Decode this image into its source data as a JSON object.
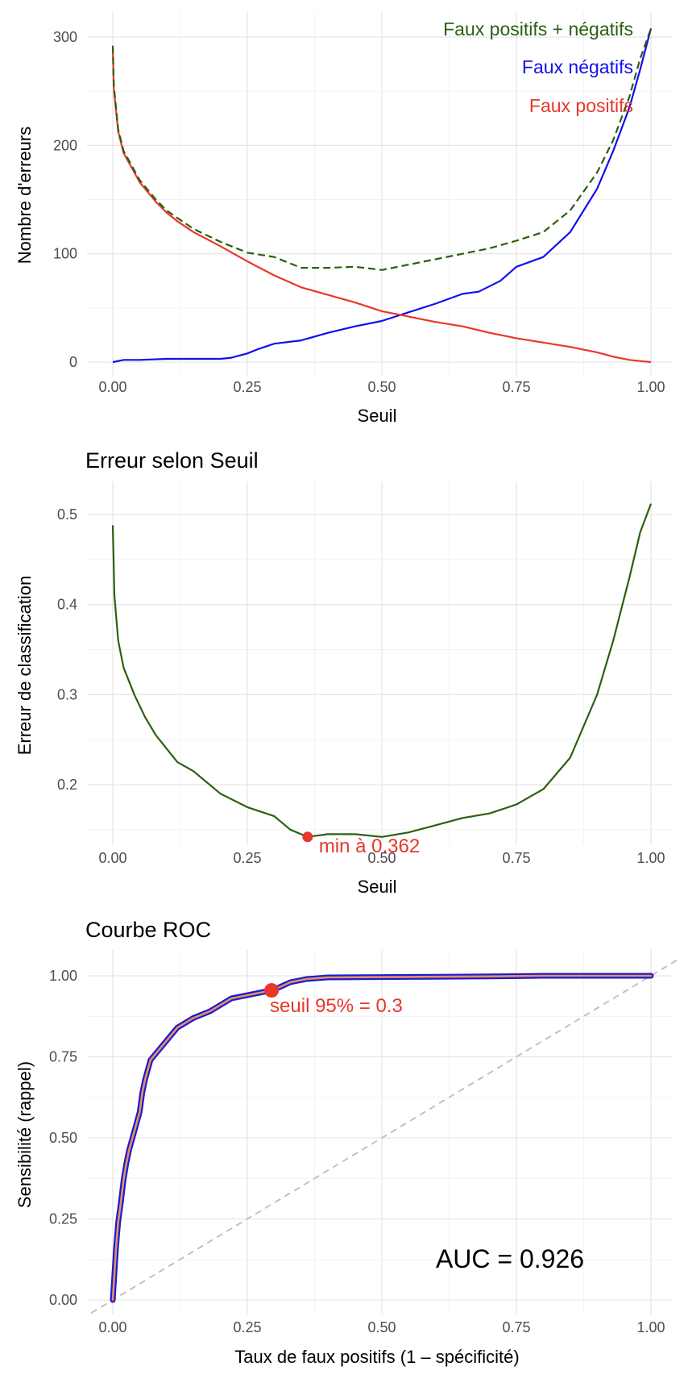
{
  "colors": {
    "fp": "#e8372a",
    "fn": "#1010ee",
    "total": "#2b6012",
    "error": "#2b6012",
    "min_point": "#e8372a",
    "roc_outer": "#1a1ad6",
    "roc_inner": "#e8905a",
    "diagonal": "#bdbdbd",
    "auc_text": "#000000"
  },
  "chart_data": [
    {
      "type": "line",
      "title": "",
      "xlabel": "Seuil",
      "ylabel": "Nombre d'erreurs",
      "xlim": [
        0,
        1
      ],
      "ylim": [
        0,
        305
      ],
      "x_ticks": [
        "0.00",
        "0.25",
        "0.50",
        "0.75",
        "1.00"
      ],
      "y_ticks": [
        "0",
        "100",
        "200",
        "300"
      ],
      "grid": true,
      "legend": "top-right (labels in plot)",
      "series": [
        {
          "name": "Faux positifs + négatifs",
          "key": "total",
          "style": "dashed",
          "x": [
            0.0,
            0.002,
            0.01,
            0.02,
            0.05,
            0.08,
            0.1,
            0.12,
            0.15,
            0.2,
            0.25,
            0.3,
            0.35,
            0.4,
            0.45,
            0.5,
            0.55,
            0.6,
            0.65,
            0.7,
            0.75,
            0.8,
            0.85,
            0.9,
            0.93,
            0.96,
            0.98,
            1.0
          ],
          "values": [
            292,
            255,
            215,
            195,
            168,
            150,
            140,
            133,
            123,
            111,
            101,
            97,
            87,
            87,
            88,
            85,
            90,
            95,
            100,
            105,
            112,
            120,
            140,
            175,
            205,
            245,
            280,
            308
          ]
        },
        {
          "name": "Faux négatifs",
          "key": "fn",
          "style": "solid",
          "x": [
            0.0,
            0.02,
            0.05,
            0.1,
            0.2,
            0.22,
            0.25,
            0.27,
            0.3,
            0.35,
            0.4,
            0.45,
            0.5,
            0.55,
            0.6,
            0.65,
            0.68,
            0.72,
            0.75,
            0.8,
            0.85,
            0.9,
            0.93,
            0.96,
            0.98,
            1.0
          ],
          "values": [
            0,
            2,
            2,
            3,
            3,
            4,
            8,
            12,
            17,
            20,
            27,
            33,
            38,
            46,
            54,
            63,
            65,
            75,
            88,
            97,
            120,
            160,
            195,
            235,
            270,
            308
          ]
        },
        {
          "name": "Faux positifs",
          "key": "fp",
          "style": "solid",
          "x": [
            0.0,
            0.002,
            0.01,
            0.02,
            0.05,
            0.08,
            0.1,
            0.12,
            0.15,
            0.2,
            0.25,
            0.3,
            0.35,
            0.4,
            0.45,
            0.5,
            0.55,
            0.6,
            0.65,
            0.7,
            0.75,
            0.8,
            0.85,
            0.9,
            0.93,
            0.96,
            0.98,
            1.0
          ],
          "values": [
            290,
            252,
            213,
            193,
            166,
            148,
            138,
            130,
            120,
            107,
            93,
            80,
            69,
            62,
            55,
            47,
            42,
            37,
            33,
            27,
            22,
            18,
            14,
            9,
            5,
            2,
            1,
            0
          ]
        }
      ]
    },
    {
      "type": "line",
      "title": "Erreur selon Seuil",
      "xlabel": "Seuil",
      "ylabel": "Erreur de classification",
      "xlim": [
        0,
        1
      ],
      "ylim": [
        0.125,
        0.53
      ],
      "x_ticks": [
        "0.00",
        "0.25",
        "0.50",
        "0.75",
        "1.00"
      ],
      "y_ticks": [
        "0.2",
        "0.3",
        "0.4",
        "0.5"
      ],
      "grid": true,
      "series": [
        {
          "key": "error",
          "x": [
            0.0,
            0.003,
            0.01,
            0.02,
            0.04,
            0.06,
            0.08,
            0.1,
            0.12,
            0.15,
            0.2,
            0.25,
            0.3,
            0.33,
            0.362,
            0.4,
            0.45,
            0.5,
            0.55,
            0.6,
            0.65,
            0.7,
            0.75,
            0.8,
            0.85,
            0.9,
            0.93,
            0.96,
            0.98,
            1.0
          ],
          "values": [
            0.488,
            0.41,
            0.36,
            0.33,
            0.3,
            0.275,
            0.255,
            0.24,
            0.225,
            0.215,
            0.19,
            0.175,
            0.165,
            0.15,
            0.142,
            0.145,
            0.145,
            0.142,
            0.147,
            0.155,
            0.163,
            0.168,
            0.178,
            0.195,
            0.23,
            0.3,
            0.36,
            0.43,
            0.48,
            0.512
          ]
        }
      ],
      "annotation": {
        "x": 0.362,
        "y": 0.142,
        "label": "min à 0.362"
      }
    },
    {
      "type": "line",
      "title": "Courbe ROC",
      "xlabel": "Taux de faux positifs (1 – spécificité)",
      "ylabel": "Sensibilité (rappel)",
      "xlim": [
        -0.05,
        1.05
      ],
      "ylim": [
        -0.05,
        1.05
      ],
      "x_ticks": [
        "0.00",
        "0.25",
        "0.50",
        "0.75",
        "1.00"
      ],
      "y_ticks": [
        "0.00",
        "0.25",
        "0.50",
        "0.75",
        "1.00"
      ],
      "grid": true,
      "series": [
        {
          "key": "roc",
          "x": [
            0.0,
            0.003,
            0.006,
            0.01,
            0.015,
            0.02,
            0.025,
            0.03,
            0.04,
            0.05,
            0.055,
            0.06,
            0.07,
            0.08,
            0.1,
            0.12,
            0.15,
            0.18,
            0.2,
            0.22,
            0.25,
            0.28,
            0.295,
            0.31,
            0.33,
            0.36,
            0.4,
            0.5,
            0.6,
            0.7,
            0.8,
            0.9,
            1.0
          ],
          "values": [
            0.0,
            0.08,
            0.16,
            0.24,
            0.3,
            0.37,
            0.42,
            0.46,
            0.52,
            0.58,
            0.64,
            0.68,
            0.74,
            0.76,
            0.8,
            0.84,
            0.87,
            0.89,
            0.91,
            0.93,
            0.94,
            0.95,
            0.955,
            0.965,
            0.98,
            0.99,
            0.995,
            0.996,
            0.997,
            0.998,
            1.0,
            1.0,
            1.0
          ]
        }
      ],
      "diagonal": true,
      "annotation": {
        "x": 0.295,
        "y": 0.955,
        "label": "seuil 95% = 0.3"
      },
      "auc_label": "AUC = 0.926"
    }
  ]
}
